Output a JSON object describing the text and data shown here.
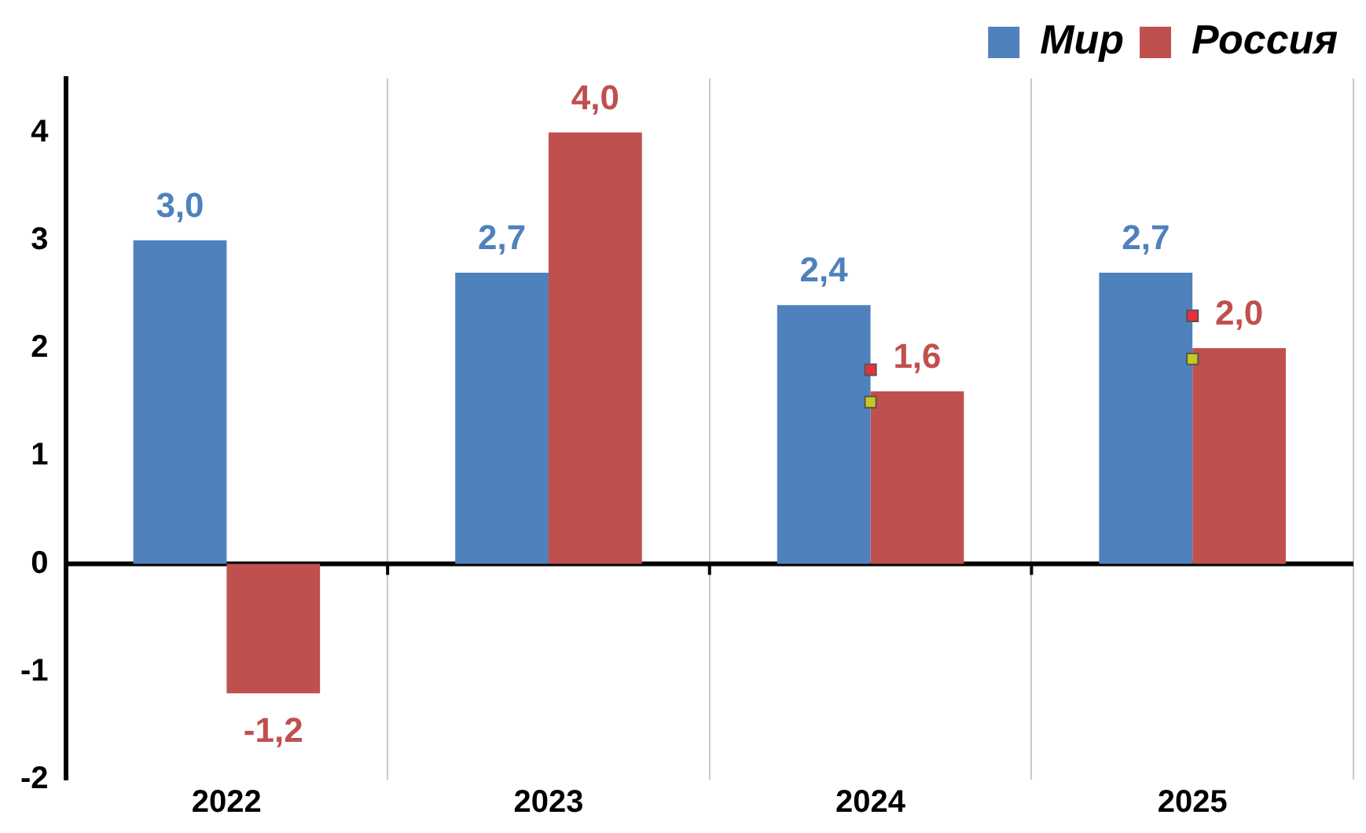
{
  "chart_data": {
    "type": "bar",
    "categories": [
      "2022",
      "2023",
      "2024",
      "2025"
    ],
    "series": [
      {
        "name": "Мир",
        "color": "#4f81bd",
        "values": [
          3.0,
          2.7,
          2.4,
          2.7
        ],
        "value_labels": [
          "3,0",
          "2,7",
          "2,4",
          "2,7"
        ]
      },
      {
        "name": "Россия",
        "color": "#c0504d",
        "values": [
          -1.2,
          4.0,
          1.6,
          2.0
        ],
        "value_labels": [
          "-1,2",
          "4,0",
          "1,6",
          "2,0"
        ]
      },
      {
        "type": "scatter",
        "color": "#e8303a",
        "marker": "square",
        "values": [
          null,
          null,
          1.8,
          2.3
        ]
      },
      {
        "type": "scatter",
        "color": "#c8c820",
        "marker": "square",
        "values": [
          null,
          null,
          1.5,
          1.9
        ]
      }
    ],
    "ylim": [
      -2,
      4.5
    ],
    "yticks": [
      -2,
      -1,
      0,
      1,
      2,
      3,
      4
    ],
    "grid": "x",
    "legend": "top right"
  }
}
